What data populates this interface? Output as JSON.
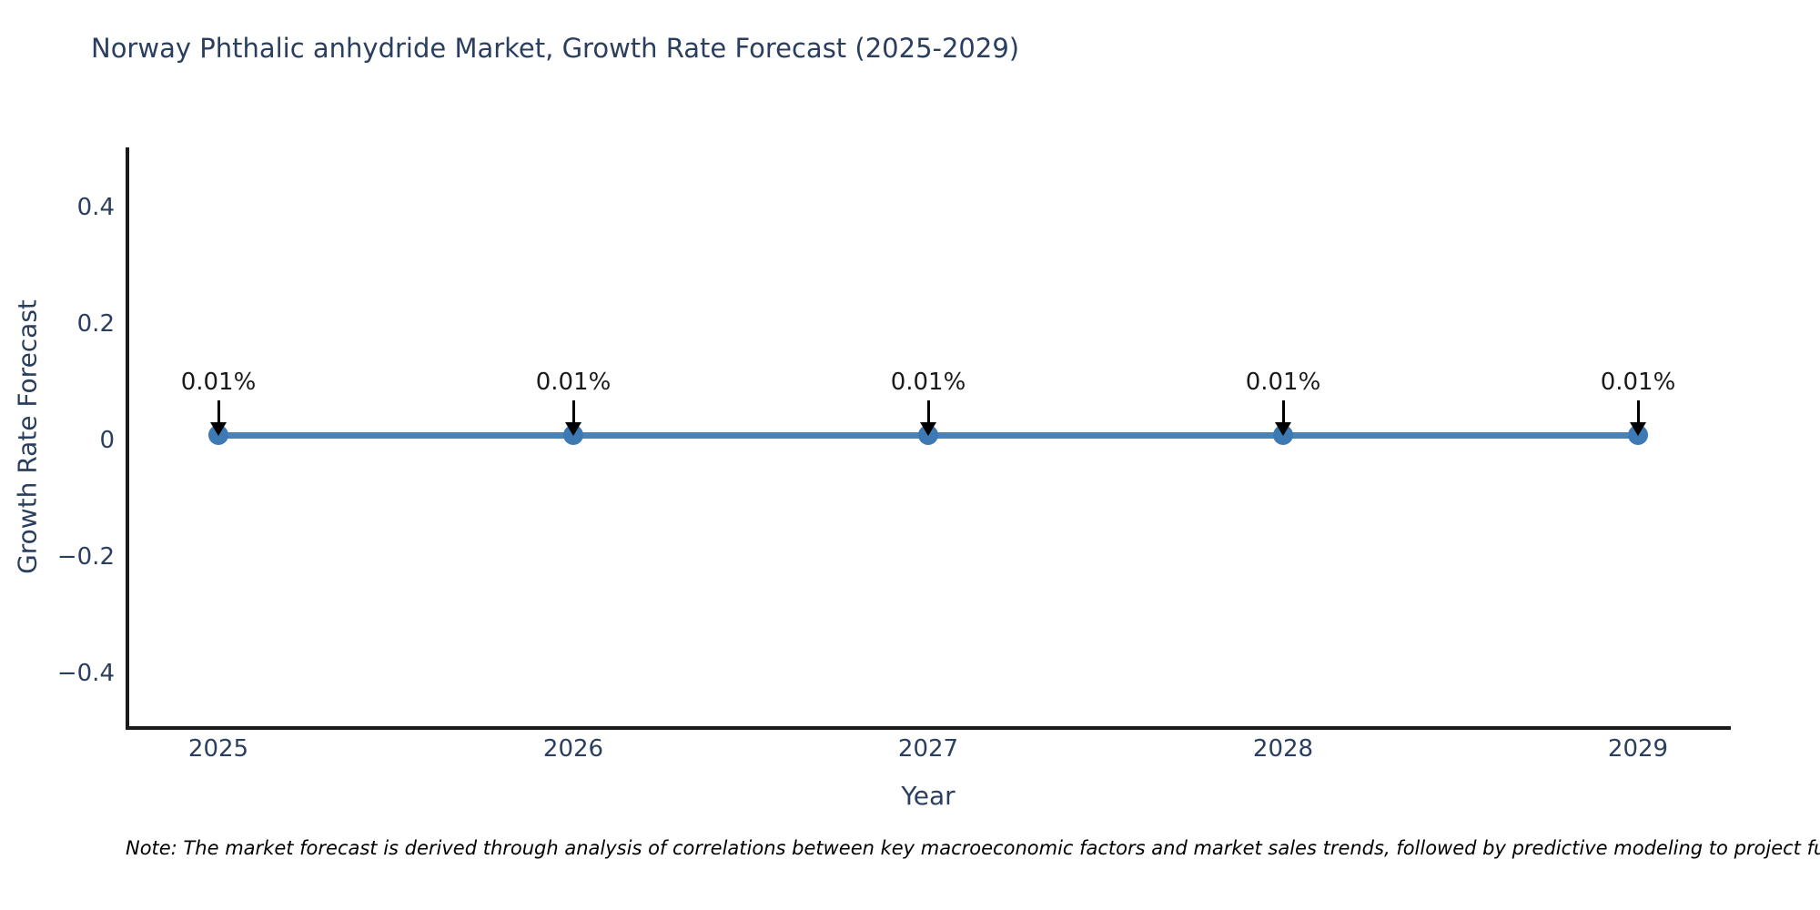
{
  "title": "Norway Phthalic anhydride Market, Growth Rate Forecast (2025-2029)",
  "note": "Note: The market forecast is derived through analysis of correlations between key macroeconomic factors and market sales trends, followed by predictive modeling to project future sales.",
  "chart_data": {
    "type": "line",
    "title": "Norway Phthalic anhydride Market, Growth Rate Forecast (2025-2029)",
    "xlabel": "Year",
    "ylabel": "Growth Rate Forecast",
    "x": [
      "2025",
      "2026",
      "2027",
      "2028",
      "2029"
    ],
    "series": [
      {
        "name": "Growth Rate Forecast",
        "values": [
          0.01,
          0.01,
          0.01,
          0.01,
          0.01
        ],
        "unit": "%"
      }
    ],
    "annotations": [
      "0.01%",
      "0.01%",
      "0.01%",
      "0.01%",
      "0.01%"
    ],
    "yticks": [
      {
        "value": 0.4,
        "label": "0.4"
      },
      {
        "value": 0.2,
        "label": "0.2"
      },
      {
        "value": 0,
        "label": "0"
      },
      {
        "value": -0.2,
        "label": "−0.2"
      },
      {
        "value": -0.4,
        "label": "−0.4"
      }
    ],
    "ylim": [
      -0.5,
      0.5
    ],
    "grid": false,
    "legend": false,
    "colors": {
      "line": "#4a82b8",
      "marker": "#3d79b3",
      "arrow": "#000000",
      "axis": "#1a1a1a",
      "axis_text": "#2a3f5f",
      "annotation_text": "#1a1a1a",
      "background": "#ffffff"
    }
  }
}
